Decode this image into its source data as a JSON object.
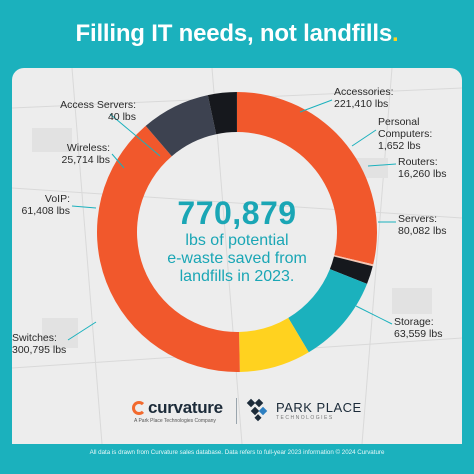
{
  "header": {
    "title": "Filling IT needs, not landfills",
    "title_dot": "."
  },
  "center": {
    "value": "770,879",
    "caption_line1": "lbs of potential",
    "caption_line2": "e-waste saved from",
    "caption_line3": "landfills in 2023."
  },
  "chart_data": {
    "type": "pie",
    "donut": true,
    "unit": "lbs",
    "total": 770879,
    "slices": [
      {
        "name": "Accessories",
        "value": 221410,
        "value_label": "221,410 lbs",
        "color": "#f1582c"
      },
      {
        "name": "Personal Computers",
        "name_line1": "Personal",
        "name_line2": "Computers:",
        "value": 1652,
        "value_label": "1,652 lbs",
        "color": "#f7c6b3"
      },
      {
        "name": "Routers",
        "value": 16260,
        "value_label": "16,260 lbs",
        "color": "#16181d"
      },
      {
        "name": "Servers",
        "value": 80082,
        "value_label": "80,082 lbs",
        "color": "#1bb1bd"
      },
      {
        "name": "Storage",
        "value": 63559,
        "value_label": "63,559 lbs",
        "color": "#ffd21f"
      },
      {
        "name": "Switches",
        "value": 300795,
        "value_label": "300,795 lbs",
        "color": "#f1582c"
      },
      {
        "name": "VoIP",
        "value": 61408,
        "value_label": "61,408 lbs",
        "color": "#3d4250"
      },
      {
        "name": "Wireless",
        "value": 25714,
        "value_label": "25,714 lbs",
        "color": "#16181d"
      },
      {
        "name": "Access Servers",
        "value": 40,
        "value_label": "40 lbs",
        "color": "#1bb1bd"
      }
    ]
  },
  "labels": {
    "accessories_name": "Accessories:",
    "personal_line1": "Personal",
    "personal_line2": "Computers:",
    "routers_name": "Routers:",
    "servers_name": "Servers:",
    "storage_name": "Storage:",
    "switches_name": "Switches:",
    "voip_name": "VoIP:",
    "wireless_name": "Wireless:",
    "access_servers_name": "Access Servers:"
  },
  "branding": {
    "curvature_name": "curvature",
    "curvature_tagline": "A Park Place Technologies Company",
    "parkplace_name": "PARK PLACE",
    "parkplace_sub": "TECHNOLOGIES"
  },
  "footer": {
    "disclaimer": "All data is drawn from Curvature sales database. Data refers to full-year 2023 information © 2024 Curvature"
  },
  "colors": {
    "teal": "#1bb1bd",
    "orange": "#f1582c",
    "yellow": "#ffd21f",
    "dark": "#16181d",
    "slate": "#3d4250"
  }
}
